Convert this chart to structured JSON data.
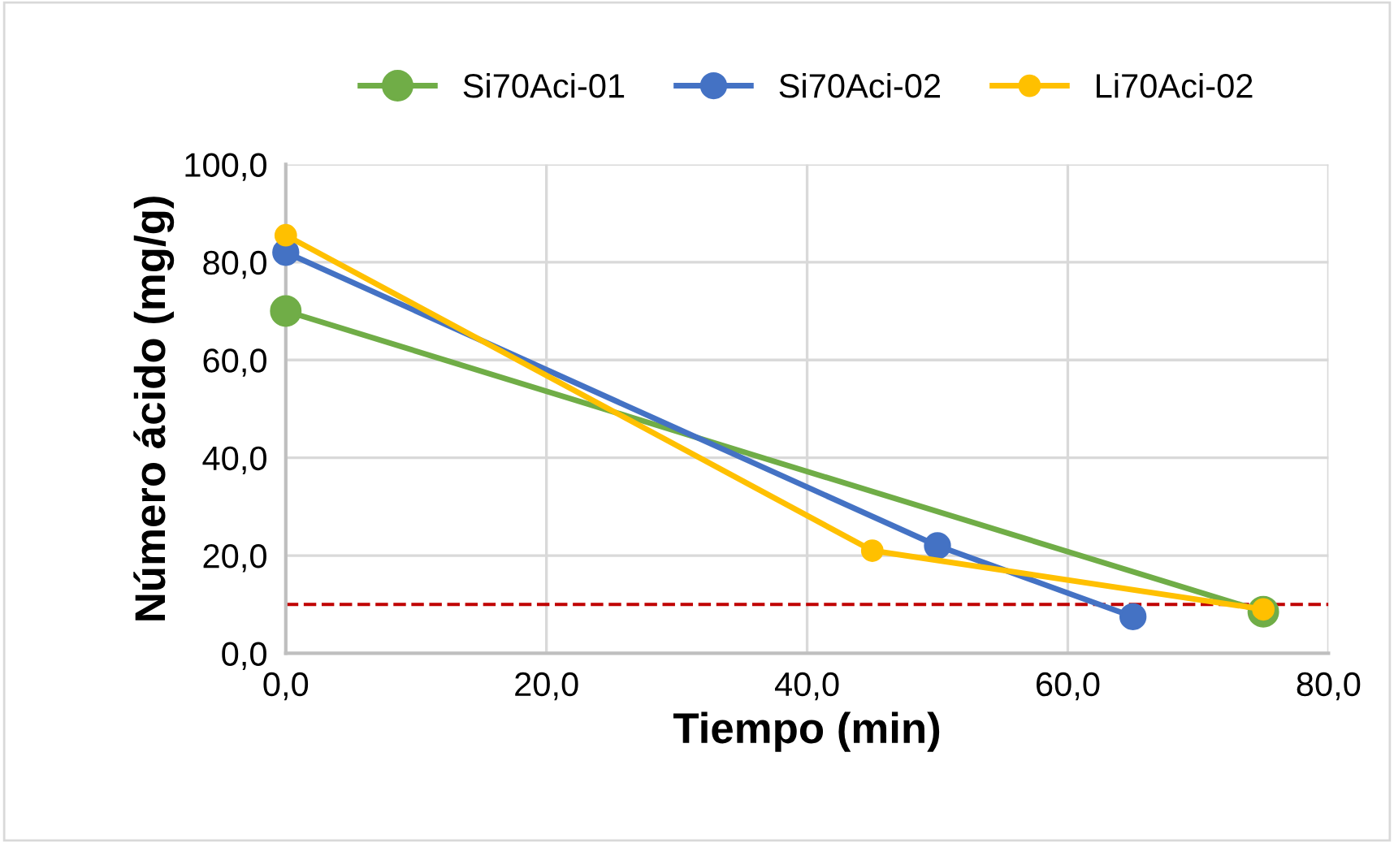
{
  "chart_data": {
    "type": "line",
    "xlabel": "Tiempo (min)",
    "ylabel": "Número ácido (mg/g)",
    "xlim": [
      0,
      80
    ],
    "xticks": [
      {
        "value": 0,
        "label": "0,0"
      },
      {
        "value": 20,
        "label": "20,0"
      },
      {
        "value": 40,
        "label": "40,0"
      },
      {
        "value": 60,
        "label": "60,0"
      },
      {
        "value": 80,
        "label": "80,0"
      }
    ],
    "ylim": [
      0,
      100
    ],
    "yticks": [
      {
        "value": 0,
        "label": "0,0"
      },
      {
        "value": 20,
        "label": "20,0"
      },
      {
        "value": 40,
        "label": "40,0"
      },
      {
        "value": 60,
        "label": "60,0"
      },
      {
        "value": 80,
        "label": "80,0"
      },
      {
        "value": 100,
        "label": "100,0"
      }
    ],
    "series": [
      {
        "name": "Si70Aci-01",
        "color": "#70ad47",
        "x": [
          0,
          75
        ],
        "values": [
          70,
          8.5
        ]
      },
      {
        "name": "Si70Aci-02",
        "color": "#4472c4",
        "x": [
          0,
          50,
          65
        ],
        "values": [
          82,
          22,
          7.5
        ]
      },
      {
        "name": "Li70Aci-02",
        "color": "#ffc000",
        "x": [
          0,
          45,
          75
        ],
        "values": [
          85.5,
          21,
          9
        ]
      }
    ],
    "ref_lines": [
      {
        "axis": "y",
        "value": 10,
        "color": "#c00000",
        "line_style": "dashed"
      }
    ],
    "grid": true,
    "legend": "top",
    "marker": "circle",
    "line_style": "solid"
  }
}
